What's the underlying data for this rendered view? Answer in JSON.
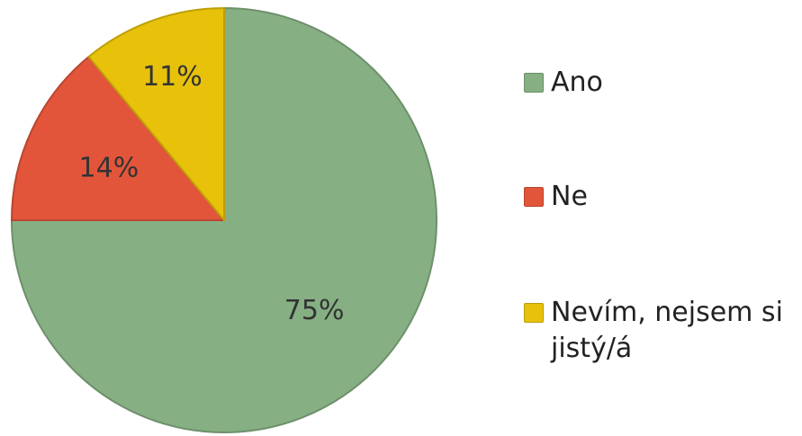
{
  "chart_data": {
    "type": "pie",
    "categories": [
      "Ano",
      "Ne",
      "Nevím, nejsem si jistý/á"
    ],
    "values": [
      75,
      14,
      11
    ],
    "labels": [
      "75%",
      "14%",
      "11%"
    ],
    "colors": [
      "#86b083",
      "#e2553a",
      "#e8c20a"
    ],
    "legend_position": "right",
    "start_angle": "12 o'clock",
    "direction": "clockwise"
  }
}
